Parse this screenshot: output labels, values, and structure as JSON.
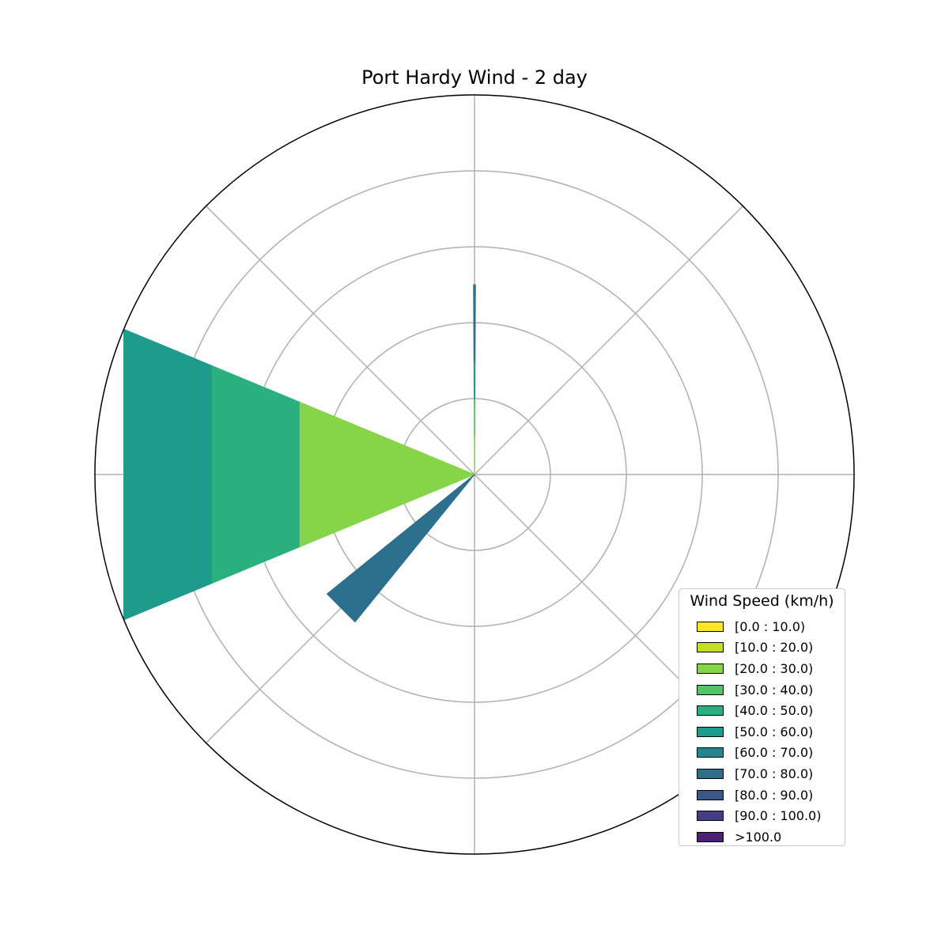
{
  "chart_data": {
    "type": "windrose",
    "title": "Port Hardy Wind - 2 day",
    "r_max": 5,
    "r_grid": [
      1,
      2,
      3,
      4,
      5
    ],
    "direction_grid_deg": [
      0,
      45,
      90,
      135,
      180,
      225,
      270,
      315
    ],
    "grid": true,
    "legend": {
      "title": "Wind Speed (km/h)",
      "placement": "lower-right",
      "entries": [
        {
          "label": "[0.0 : 10.0)",
          "color": "#fde725"
        },
        {
          "label": "[10.0 : 20.0)",
          "color": "#c2df23"
        },
        {
          "label": "[20.0 : 30.0)",
          "color": "#86d549"
        },
        {
          "label": "[30.0 : 40.0)",
          "color": "#52c569"
        },
        {
          "label": "[40.0 : 50.0)",
          "color": "#2ab07f"
        },
        {
          "label": "[50.0 : 60.0)",
          "color": "#1e9b8a"
        },
        {
          "label": "[60.0 : 70.0)",
          "color": "#25858e"
        },
        {
          "label": "[70.0 : 80.0)",
          "color": "#2d708e"
        },
        {
          "label": "[80.0 : 90.0)",
          "color": "#38588c"
        },
        {
          "label": "[90.0 : 100.0)",
          "color": "#433e85"
        },
        {
          "label": ">100.0",
          "color": "#482173"
        }
      ]
    },
    "petals": [
      {
        "direction_deg": 0,
        "width_deg": 0.6,
        "segments": [
          {
            "bin": 2,
            "from": 0.0,
            "to": 0.5
          },
          {
            "bin": 3,
            "from": 0.5,
            "to": 1.0
          },
          {
            "bin": 5,
            "from": 1.0,
            "to": 1.5
          },
          {
            "bin": 7,
            "from": 1.5,
            "to": 2.5
          }
        ]
      },
      {
        "direction_deg": 270,
        "width_deg": 45,
        "segments": [
          {
            "bin": 2,
            "from": 0.0,
            "to": 2.5
          },
          {
            "bin": 4,
            "from": 2.5,
            "to": 3.75
          },
          {
            "bin": 5,
            "from": 3.75,
            "to": 5.0
          }
        ]
      },
      {
        "direction_deg": 225,
        "width_deg": 12,
        "segments": [
          {
            "bin": 7,
            "from": 0.0,
            "to": 2.5
          }
        ]
      }
    ]
  }
}
